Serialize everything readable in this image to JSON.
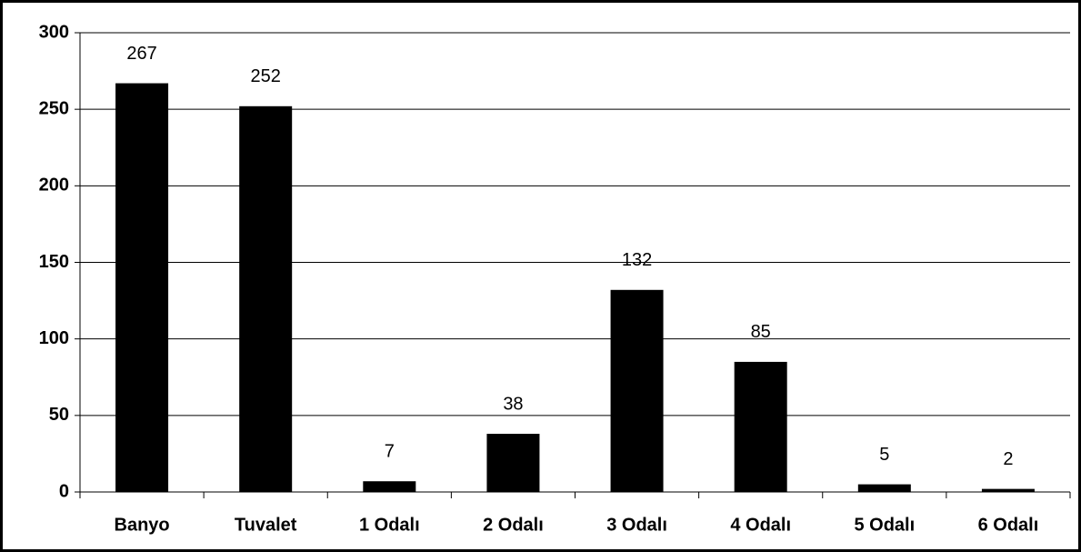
{
  "chart_data": {
    "type": "bar",
    "categories": [
      "Banyo",
      "Tuvalet",
      "1 Odalı",
      "2 Odalı",
      "3 Odalı",
      "4 Odalı",
      "5 Odalı",
      "6 Odalı"
    ],
    "values": [
      267,
      252,
      7,
      38,
      132,
      85,
      5,
      2
    ],
    "color": "#000000",
    "ylim": [
      0,
      300
    ],
    "yticks": [
      0,
      50,
      100,
      150,
      200,
      250,
      300
    ],
    "grid": true
  }
}
